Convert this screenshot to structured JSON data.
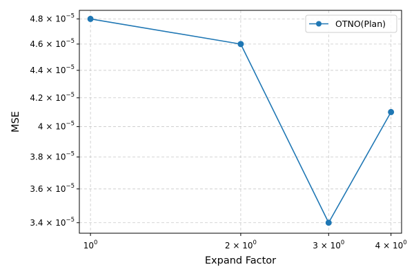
{
  "chart_data": {
    "type": "line",
    "xscale": "log",
    "yscale": "log",
    "xlabel": "Expand Factor",
    "ylabel": "MSE",
    "xlim": [
      0.95,
      4.2
    ],
    "ylim": [
      3.34e-05,
      4.87e-05
    ],
    "grid": true,
    "grid_style": "dashed",
    "legend_position": "top-right",
    "x_ticks": [
      {
        "value": 1,
        "base": "10",
        "exp": "0"
      },
      {
        "value": 2,
        "base": "2 × 10",
        "exp": "0"
      },
      {
        "value": 3,
        "base": "3 × 10",
        "exp": "0"
      },
      {
        "value": 4,
        "base": "4 × 10",
        "exp": "0"
      }
    ],
    "y_ticks": [
      {
        "value": 3.4e-05,
        "base": "3.4 × 10",
        "exp": "−5"
      },
      {
        "value": 3.6e-05,
        "base": "3.6 × 10",
        "exp": "−5"
      },
      {
        "value": 3.8e-05,
        "base": "3.8 × 10",
        "exp": "−5"
      },
      {
        "value": 4e-05,
        "base": "4 × 10",
        "exp": "−5"
      },
      {
        "value": 4.2e-05,
        "base": "4.2 × 10",
        "exp": "−5"
      },
      {
        "value": 4.4e-05,
        "base": "4.4 × 10",
        "exp": "−5"
      },
      {
        "value": 4.6e-05,
        "base": "4.6 × 10",
        "exp": "−5"
      },
      {
        "value": 4.8e-05,
        "base": "4.8 × 10",
        "exp": "−5"
      }
    ],
    "series": [
      {
        "name": "OTNO(Plan)",
        "color": "#1f77b4",
        "marker": "circle",
        "x": [
          1,
          2,
          3,
          4
        ],
        "y": [
          4.8e-05,
          4.6e-05,
          3.4e-05,
          4.1e-05
        ]
      }
    ]
  }
}
